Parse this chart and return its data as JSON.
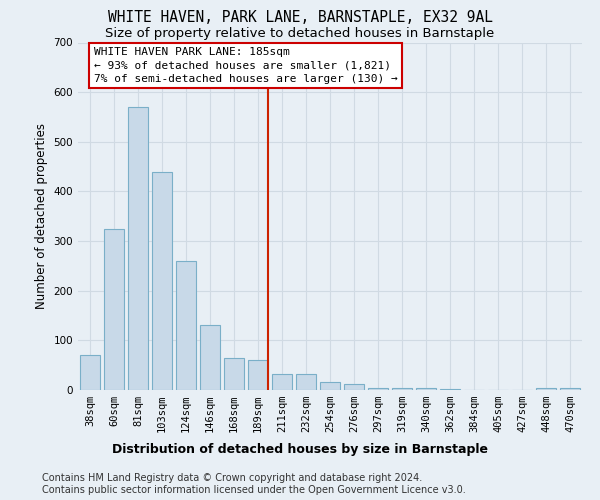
{
  "title": "WHITE HAVEN, PARK LANE, BARNSTAPLE, EX32 9AL",
  "subtitle": "Size of property relative to detached houses in Barnstaple",
  "xlabel": "Distribution of detached houses by size in Barnstaple",
  "ylabel": "Number of detached properties",
  "categories": [
    "38sqm",
    "60sqm",
    "81sqm",
    "103sqm",
    "124sqm",
    "146sqm",
    "168sqm",
    "189sqm",
    "211sqm",
    "232sqm",
    "254sqm",
    "276sqm",
    "297sqm",
    "319sqm",
    "340sqm",
    "362sqm",
    "384sqm",
    "405sqm",
    "427sqm",
    "448sqm",
    "470sqm"
  ],
  "values": [
    70,
    325,
    570,
    440,
    260,
    130,
    65,
    60,
    33,
    33,
    17,
    12,
    5,
    5,
    5,
    3,
    0,
    0,
    0,
    5,
    5
  ],
  "bar_color": "#c8d9e8",
  "bar_edge_color": "#7aafc8",
  "property_line_index": 7,
  "property_line_color": "#cc2200",
  "annotation_line1": "WHITE HAVEN PARK LANE: 185sqm",
  "annotation_line2": "← 93% of detached houses are smaller (1,821)",
  "annotation_line3": "7% of semi-detached houses are larger (130) →",
  "annotation_box_facecolor": "#ffffff",
  "annotation_box_edgecolor": "#cc0000",
  "footer_line1": "Contains HM Land Registry data © Crown copyright and database right 2024.",
  "footer_line2": "Contains public sector information licensed under the Open Government Licence v3.0.",
  "ylim": [
    0,
    700
  ],
  "yticks": [
    0,
    100,
    200,
    300,
    400,
    500,
    600,
    700
  ],
  "background_color": "#e8eff5",
  "grid_color": "#d0dae3",
  "title_fontsize": 10.5,
  "subtitle_fontsize": 9.5,
  "ylabel_fontsize": 8.5,
  "xlabel_fontsize": 9,
  "tick_fontsize": 7.5,
  "annotation_fontsize": 8,
  "footer_fontsize": 7
}
